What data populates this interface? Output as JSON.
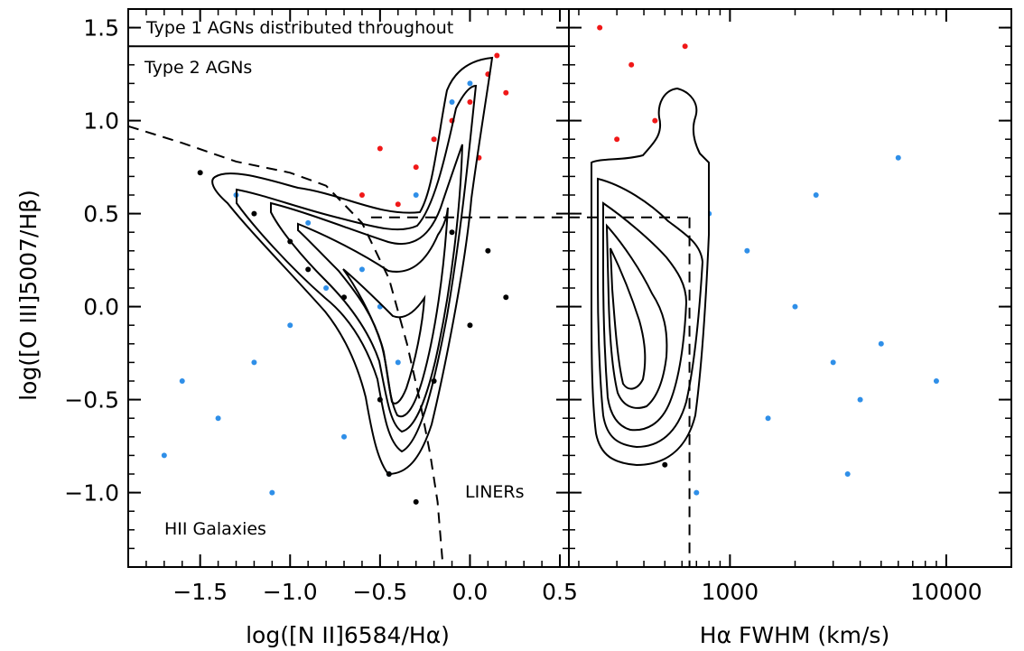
{
  "chart_data": [
    {
      "type": "scatter",
      "panel": "left",
      "xlabel": "log([N II]6584/Hα)",
      "ylabel": "log([O III]5007/Hβ)",
      "xlim": [
        -1.9,
        0.55
      ],
      "ylim": [
        -1.4,
        1.6
      ],
      "x_scale": "linear",
      "y_scale": "linear",
      "xticks": [
        -1.5,
        -1.0,
        -0.5,
        0.0,
        0.5
      ],
      "xtick_labels": [
        "−1.5",
        "−1.0",
        "−0.5",
        "0.0",
        "0.5"
      ],
      "yticks": [
        1.5,
        1.0,
        0.5,
        0.0,
        -0.5,
        -1.0
      ],
      "ytick_labels": [
        "1.5",
        "1.0",
        "0.5",
        "0.0",
        "−0.5",
        "−1.0"
      ],
      "grid": false,
      "annotations": {
        "type1": "Type 1 AGNs distributed throughout",
        "type2": "Type 2 AGNs",
        "liners": "LINERs",
        "hii": "HII Galaxies"
      },
      "separator_line_y": 1.4,
      "dashed_kauffmann_curve": [
        [
          -1.9,
          0.97
        ],
        [
          -1.6,
          0.88
        ],
        [
          -1.3,
          0.78
        ],
        [
          -1.0,
          0.72
        ],
        [
          -0.8,
          0.65
        ],
        [
          -0.6,
          0.45
        ],
        [
          -0.45,
          0.15
        ],
        [
          -0.35,
          -0.2
        ],
        [
          -0.28,
          -0.5
        ],
        [
          -0.22,
          -0.8
        ],
        [
          -0.18,
          -1.05
        ],
        [
          -0.15,
          -1.4
        ]
      ],
      "dashed_horizontal_y": 0.48,
      "dashed_horizontal_xrange": [
        -0.55,
        0.55
      ],
      "series_colors": [
        "#2f8fe8",
        "#000000",
        "#f01818"
      ],
      "series": [
        {
          "color": "#2f8fe8",
          "points": [
            [
              -1.6,
              -0.4
            ],
            [
              -1.4,
              -0.6
            ],
            [
              -1.2,
              -0.3
            ],
            [
              -1.0,
              -0.1
            ],
            [
              -0.8,
              0.1
            ],
            [
              -0.6,
              0.2
            ],
            [
              -0.5,
              0.0
            ],
            [
              -0.4,
              -0.3
            ],
            [
              -0.3,
              0.6
            ],
            [
              -0.2,
              0.9
            ],
            [
              -0.1,
              1.1
            ],
            [
              0.0,
              1.2
            ],
            [
              -0.9,
              0.45
            ],
            [
              -1.3,
              0.6
            ],
            [
              -1.7,
              -0.8
            ],
            [
              -1.1,
              -1.0
            ],
            [
              -0.7,
              -0.7
            ],
            [
              -0.45,
              -0.9
            ]
          ]
        },
        {
          "color": "#000000",
          "points": [
            [
              -1.5,
              0.72
            ],
            [
              -1.2,
              0.5
            ],
            [
              -1.0,
              0.35
            ],
            [
              -0.9,
              0.2
            ],
            [
              -0.7,
              0.05
            ],
            [
              -0.5,
              -0.5
            ],
            [
              -0.45,
              -0.9
            ],
            [
              -0.3,
              -1.05
            ],
            [
              -0.1,
              0.4
            ],
            [
              0.1,
              0.3
            ],
            [
              0.2,
              0.05
            ],
            [
              0.0,
              -0.1
            ],
            [
              -0.2,
              -0.4
            ]
          ]
        },
        {
          "color": "#f01818",
          "points": [
            [
              -0.6,
              0.6
            ],
            [
              -0.4,
              0.55
            ],
            [
              -0.3,
              0.75
            ],
            [
              -0.2,
              0.9
            ],
            [
              -0.1,
              1.0
            ],
            [
              0.0,
              1.1
            ],
            [
              0.1,
              1.25
            ],
            [
              0.15,
              1.35
            ],
            [
              0.2,
              1.15
            ],
            [
              -0.5,
              0.85
            ],
            [
              0.05,
              0.8
            ]
          ]
        }
      ]
    },
    {
      "type": "scatter",
      "panel": "right",
      "xlabel": "Hα FWHM (km/s)",
      "ylim": [
        -1.4,
        1.6
      ],
      "x_scale": "log",
      "xlim": [
        180,
        20000
      ],
      "xticks": [
        1000,
        10000
      ],
      "xtick_labels": [
        "1000",
        "10000"
      ],
      "yticks": [
        1.5,
        1.0,
        0.5,
        0.0,
        -0.5,
        -1.0
      ],
      "grid": false,
      "dashed_vertical_x": 650,
      "dashed_horizontal_y": 0.48,
      "series_colors": [
        "#2f8fe8",
        "#000000",
        "#f01818"
      ],
      "series": [
        {
          "color": "#2f8fe8",
          "points": [
            [
              800,
              0.5
            ],
            [
              1200,
              0.3
            ],
            [
              2000,
              0.0
            ],
            [
              3000,
              -0.3
            ],
            [
              4000,
              -0.5
            ],
            [
              5000,
              -0.2
            ],
            [
              2500,
              0.6
            ],
            [
              1500,
              -0.6
            ],
            [
              6000,
              0.8
            ],
            [
              9000,
              -0.4
            ],
            [
              700,
              -1.0
            ],
            [
              3500,
              -0.9
            ]
          ]
        },
        {
          "color": "#000000",
          "points": [
            [
              250,
              0.45
            ],
            [
              300,
              -0.2
            ],
            [
              400,
              -0.7
            ],
            [
              500,
              -0.85
            ],
            [
              600,
              0.3
            ],
            [
              350,
              0.1
            ]
          ]
        },
        {
          "color": "#f01818",
          "points": [
            [
              250,
              1.5
            ],
            [
              350,
              1.3
            ],
            [
              450,
              1.0
            ],
            [
              550,
              0.8
            ],
            [
              620,
              1.4
            ],
            [
              300,
              0.9
            ]
          ]
        }
      ]
    }
  ]
}
